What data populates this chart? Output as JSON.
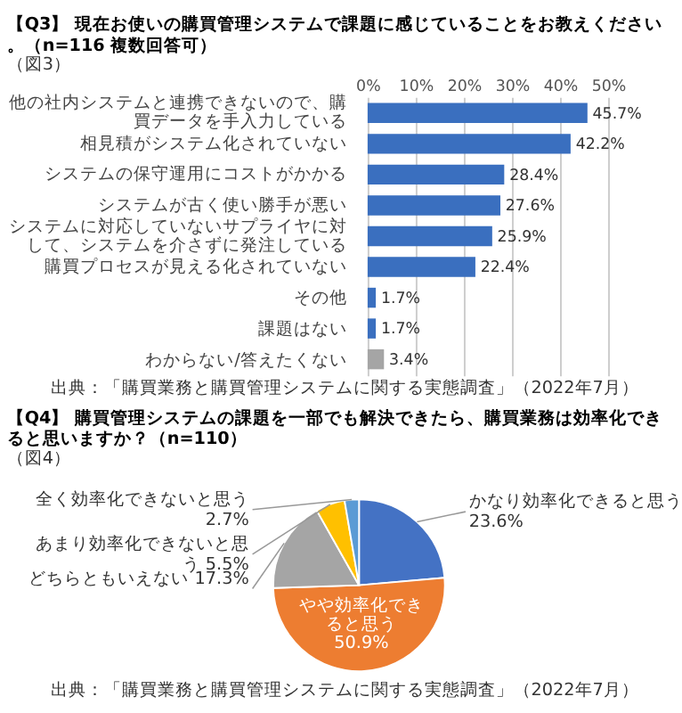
{
  "chart_data": [
    {
      "type": "bar",
      "orientation": "horizontal",
      "title": "【Q3】 現在お使いの購買管理システムで課題に感じていることをお教えください。（n=116 複数回答可）",
      "subtitle": "（図3）",
      "categories": [
        "他の社内システムと連携できないので、購買データを手入力している",
        "相見積がシステム化されていない",
        "システムの保守運用にコストがかかる",
        "システムが古く使い勝手が悪い",
        "システムに対応していないサプライヤに対して、システムを介さずに発注している",
        "購買プロセスが見える化されていない",
        "その他",
        "課題はない",
        "わからない/答えたくない"
      ],
      "values": [
        45.7,
        42.2,
        28.4,
        27.6,
        25.9,
        22.4,
        1.7,
        1.7,
        3.4
      ],
      "colors": [
        "#3a6fbf",
        "#3a6fbf",
        "#3a6fbf",
        "#3a6fbf",
        "#3a6fbf",
        "#3a6fbf",
        "#3a6fbf",
        "#3a6fbf",
        "#a5a5a5"
      ],
      "value_labels": [
        "45.7%",
        "42.2%",
        "28.4%",
        "27.6%",
        "25.9%",
        "22.4%",
        "1.7%",
        "1.7%",
        "3.4%"
      ],
      "xlim": [
        0,
        50
      ],
      "xticks": [
        {
          "value": 0,
          "label": "0%"
        },
        {
          "value": 10,
          "label": "10%"
        },
        {
          "value": 20,
          "label": "20%"
        },
        {
          "value": 30,
          "label": "30%"
        },
        {
          "value": 40,
          "label": "40%"
        },
        {
          "value": 50,
          "label": "50%"
        }
      ],
      "grid": "x",
      "annotations": [
        "出典：「購買業務と購買管理システムに関する実態調査」（2022年7月）"
      ]
    },
    {
      "type": "pie",
      "title": "【Q4】 購買管理システムの課題を一部でも解決できたら、購買業務は効率化できると思いますか？（n=110）",
      "subtitle": "（図4）",
      "categories": [
        "かなり効率化できると思う",
        "やや効率化できると思う",
        "どちらともいえない",
        "あまり効率化できないと思う",
        "全く効率化できないと思う"
      ],
      "values": [
        23.6,
        50.9,
        17.3,
        5.5,
        2.7
      ],
      "colors": [
        "#4472c4",
        "#ed7d31",
        "#a5a5a5",
        "#ffc000",
        "#5b9bd5"
      ],
      "value_labels": [
        "23.6%",
        "50.9%",
        "17.3%",
        "5.5%",
        "2.7%"
      ],
      "annotations": [
        "出典：「購買業務と購買管理システムに関する実態調査」（2022年7月）"
      ]
    }
  ]
}
